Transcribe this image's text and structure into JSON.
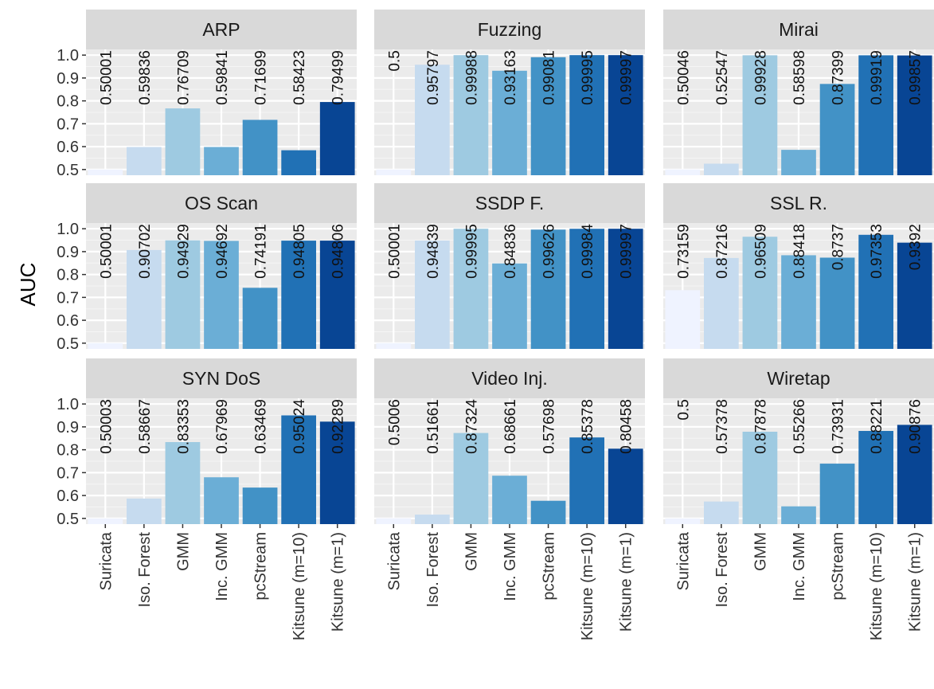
{
  "chart_data": {
    "type": "bar",
    "ylabel": "AUC",
    "xlabel": "",
    "ylim": [
      0.5,
      1.0
    ],
    "yticks": [
      0.5,
      0.6,
      0.7,
      0.8,
      0.9,
      1.0
    ],
    "ytick_labels": [
      "0.5",
      "0.6",
      "0.7",
      "0.8",
      "0.9",
      "1.0"
    ],
    "grid": true,
    "legend": "none",
    "categories": [
      "Suricata",
      "Iso. Forest",
      "GMM",
      "Inc. GMM",
      "pcStream",
      "Kitsune (m=10)",
      "Kitsune (m=1)"
    ],
    "colors": [
      "#EFF3FF",
      "#C6DBEF",
      "#9ECAE1",
      "#6BAED6",
      "#4292C6",
      "#2171B5",
      "#084594"
    ],
    "panels": [
      {
        "title": "ARP",
        "values": [
          0.50001,
          0.59836,
          0.76709,
          0.59841,
          0.71699,
          0.58423,
          0.79499
        ],
        "labels": [
          "0.50001",
          "0.59836",
          "0.76709",
          "0.59841",
          "0.71699",
          "0.58423",
          "0.79499"
        ]
      },
      {
        "title": "Fuzzing",
        "values": [
          0.5,
          0.95797,
          0.99988,
          0.93163,
          0.99081,
          0.99995,
          0.99997
        ],
        "labels": [
          "0.5",
          "0.95797",
          "0.99988",
          "0.93163",
          "0.99081",
          "0.99995",
          "0.99997"
        ]
      },
      {
        "title": "Mirai",
        "values": [
          0.50046,
          0.52547,
          0.99928,
          0.58598,
          0.87399,
          0.99919,
          0.99857
        ],
        "labels": [
          "0.50046",
          "0.52547",
          "0.99928",
          "0.58598",
          "0.87399",
          "0.99919",
          "0.99857"
        ]
      },
      {
        "title": "OS Scan",
        "values": [
          0.50001,
          0.90702,
          0.94929,
          0.94692,
          0.74191,
          0.94805,
          0.94806
        ],
        "labels": [
          "0.50001",
          "0.90702",
          "0.94929",
          "0.94692",
          "0.74191",
          "0.94805",
          "0.94806"
        ]
      },
      {
        "title": "SSDP F.",
        "values": [
          0.50001,
          0.94839,
          0.99995,
          0.84836,
          0.99626,
          0.99984,
          0.99997
        ],
        "labels": [
          "0.50001",
          "0.94839",
          "0.99995",
          "0.84836",
          "0.99626",
          "0.99984",
          "0.99997"
        ]
      },
      {
        "title": "SSL R.",
        "values": [
          0.73159,
          0.87216,
          0.96509,
          0.88418,
          0.8737,
          0.97353,
          0.9392
        ],
        "labels": [
          "0.73159",
          "0.87216",
          "0.96509",
          "0.88418",
          "0.8737",
          "0.97353",
          "0.9392"
        ]
      },
      {
        "title": "SYN DoS",
        "values": [
          0.50003,
          0.58667,
          0.83353,
          0.67969,
          0.63469,
          0.95024,
          0.92289
        ],
        "labels": [
          "0.50003",
          "0.58667",
          "0.83353",
          "0.67969",
          "0.63469",
          "0.95024",
          "0.92289"
        ]
      },
      {
        "title": "Video Inj.",
        "values": [
          0.5006,
          0.51661,
          0.87324,
          0.68661,
          0.57698,
          0.85378,
          0.80458
        ],
        "labels": [
          "0.5006",
          "0.51661",
          "0.87324",
          "0.68661",
          "0.57698",
          "0.85378",
          "0.80458"
        ]
      },
      {
        "title": "Wiretap",
        "values": [
          0.5,
          0.57378,
          0.87878,
          0.55266,
          0.73931,
          0.88221,
          0.90876
        ],
        "labels": [
          "0.5",
          "0.57378",
          "0.87878",
          "0.55266",
          "0.73931",
          "0.88221",
          "0.90876"
        ]
      }
    ]
  }
}
